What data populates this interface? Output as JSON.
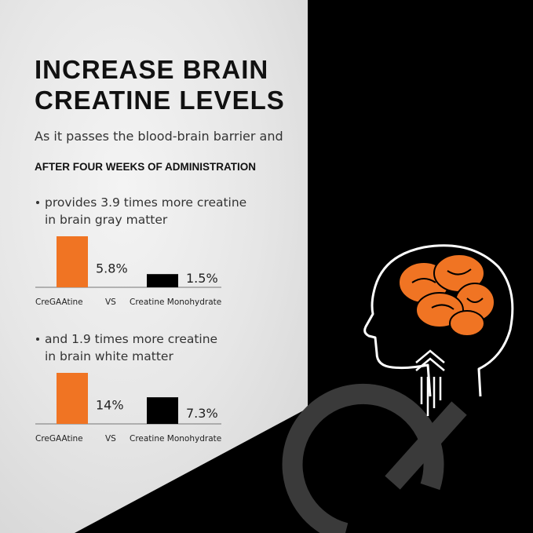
{
  "header": {
    "title_lines": [
      "INCREASE BRAIN",
      "CREATINE LEVELS"
    ],
    "subtitle": "As it passes the blood-brain barrier and",
    "lead": "AFTER FOUR WEEKS OF ADMINISTRATION"
  },
  "sections": [
    {
      "bullet_lines": [
        "provides 3.9 times more creatine",
        "in brain gray matter"
      ],
      "vs": "VS",
      "bars": [
        {
          "name": "CreGAAtine",
          "value": 5.8,
          "value_label": "5.8%",
          "color": "#f07423"
        },
        {
          "name": "Creatine Monohydrate",
          "value": 1.5,
          "value_label": "1.5%",
          "color": "#000000"
        }
      ]
    },
    {
      "bullet_lines": [
        "and 1.9 times more creatine",
        "in brain white matter"
      ],
      "vs": "VS",
      "bars": [
        {
          "name": "CreGAAtine",
          "value": 14,
          "value_label": "14%",
          "color": "#f07423"
        },
        {
          "name": "Creatine Monohydrate",
          "value": 7.3,
          "value_label": "7.3%",
          "color": "#000000"
        }
      ]
    }
  ]
}
